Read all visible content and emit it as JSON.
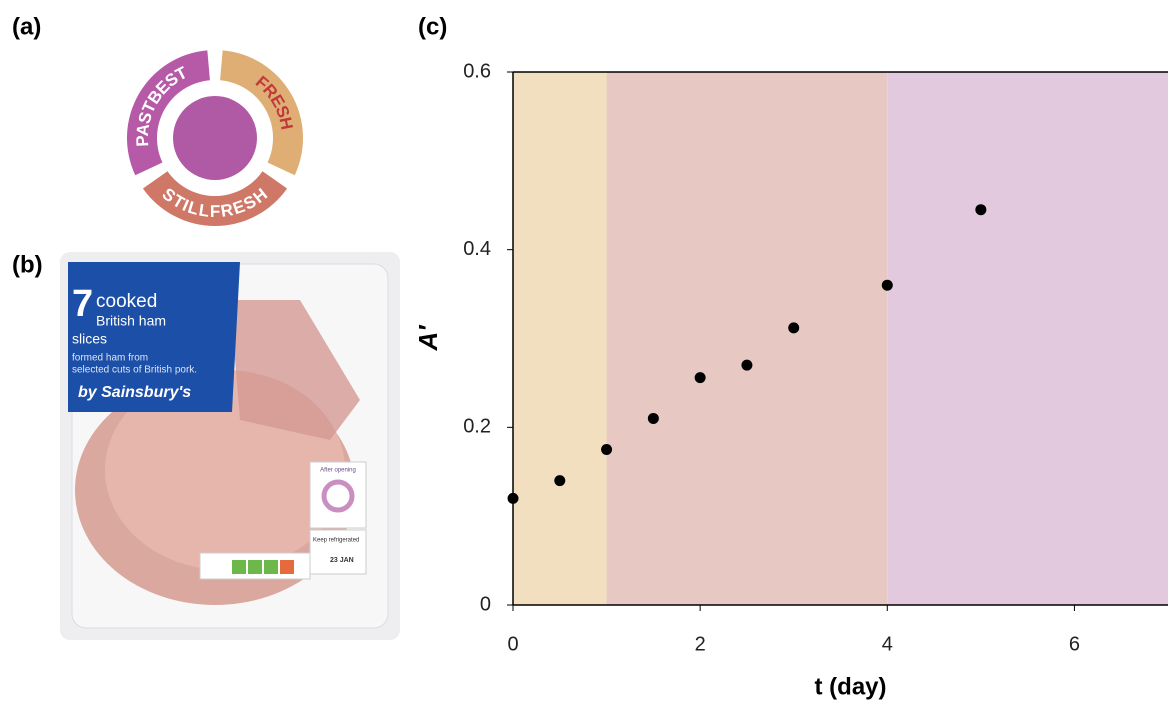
{
  "panels": {
    "a": "(a)",
    "b": "(b)",
    "c": "(c)"
  },
  "diagram": {
    "segments": [
      {
        "label": "FRESH"
      },
      {
        "label": "STILLFRESH"
      },
      {
        "label": "PASTBEST"
      }
    ]
  },
  "photo": {
    "count": "7",
    "product": "cooked",
    "line1": "British ham",
    "line2": "slices",
    "desc1": "formed ham from",
    "desc2": "selected cuts of British pork.",
    "brand": "by Sainsbury's",
    "sticker": "After opening",
    "storage": "Keep refrigerated",
    "date": "23 JAN"
  },
  "chart_data": {
    "type": "scatter",
    "x_label": "t (day)",
    "y_label": "A′",
    "x": [
      0,
      0.5,
      1,
      1.5,
      2,
      2.5,
      3,
      4,
      5
    ],
    "values": [
      0.12,
      0.14,
      0.175,
      0.21,
      0.256,
      0.27,
      0.312,
      0.36,
      0.445
    ],
    "color": "#000000",
    "xlim": [
      0,
      7
    ],
    "ylim": [
      0,
      0.6
    ],
    "xticks": [
      0,
      2,
      4,
      6
    ],
    "yticks": [
      0,
      0.2,
      0.4,
      0.6
    ],
    "regions": [
      {
        "from": 0,
        "to": 1,
        "color": "#f1dfc0"
      },
      {
        "from": 1,
        "to": 4,
        "color": "#e8c8c3"
      },
      {
        "from": 4,
        "to": 7,
        "color": "#e3c9de"
      }
    ]
  }
}
